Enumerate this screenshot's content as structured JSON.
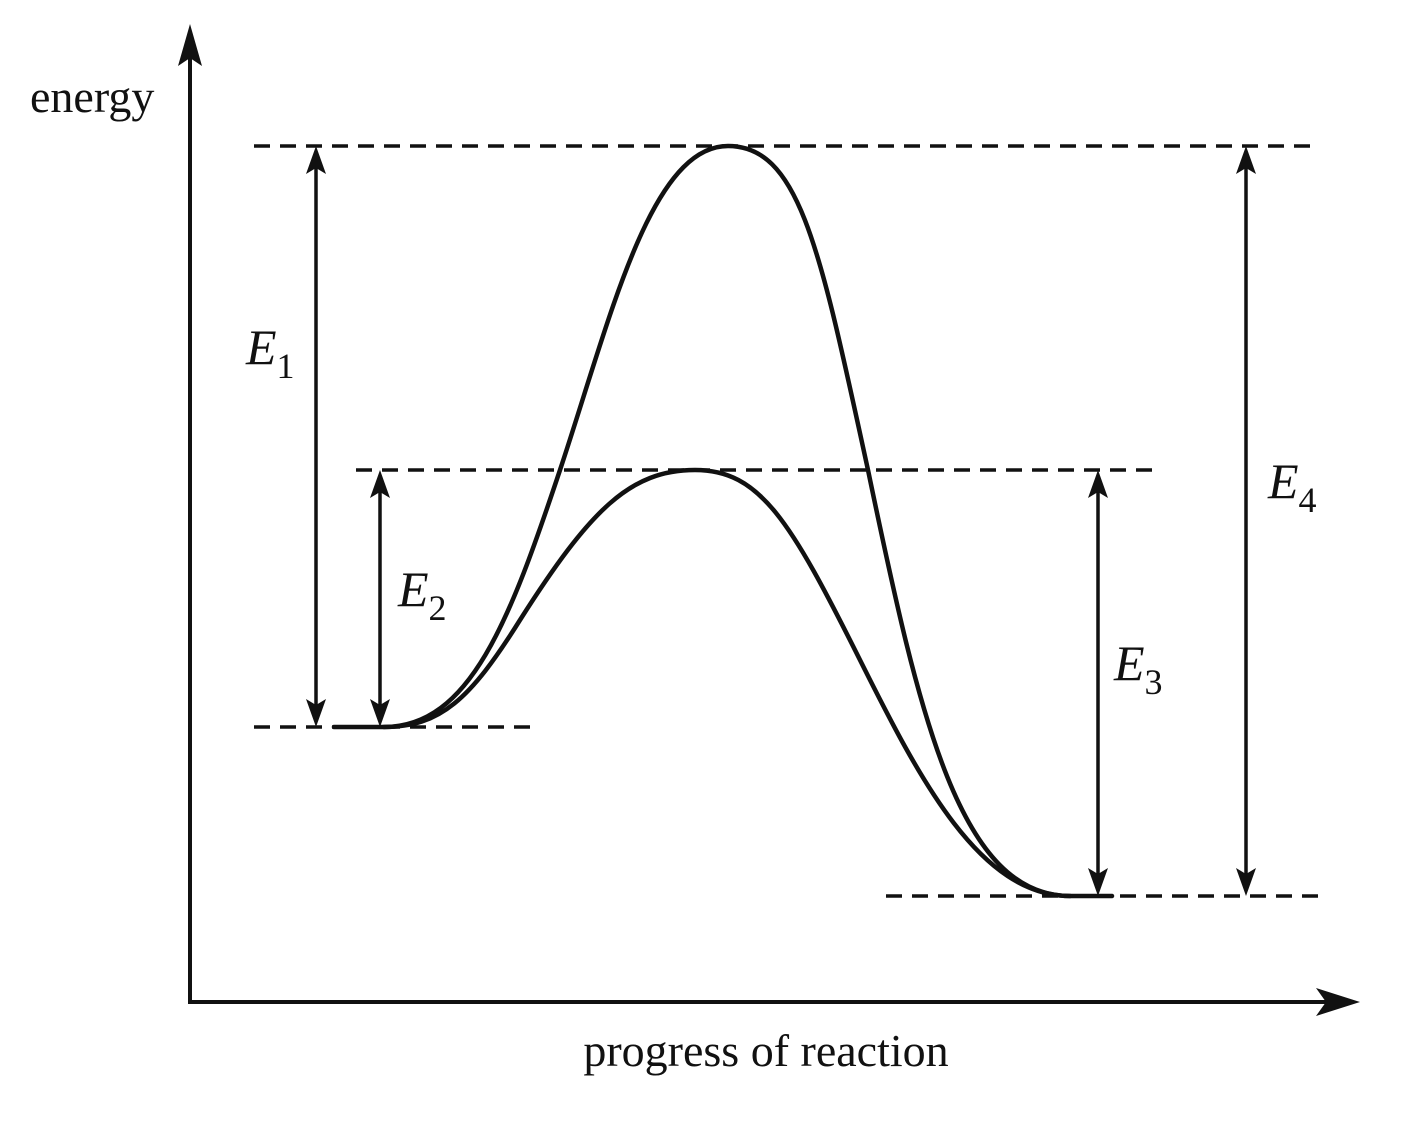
{
  "axes": {
    "y_label": "energy",
    "x_label": "progress of reaction"
  },
  "curves": [
    {
      "name": "uncatalysed-pathway"
    },
    {
      "name": "catalysed-pathway"
    }
  ],
  "levels": [
    {
      "name": "reactant-level"
    },
    {
      "name": "product-level"
    },
    {
      "name": "high-peak-level"
    },
    {
      "name": "low-peak-level"
    }
  ],
  "energy_arrows": [
    {
      "symbol": "E",
      "subscript": "1"
    },
    {
      "symbol": "E",
      "subscript": "2"
    },
    {
      "symbol": "E",
      "subscript": "3"
    },
    {
      "symbol": "E",
      "subscript": "4"
    }
  ],
  "colors": {
    "ink": "#111111",
    "background": "#ffffff"
  }
}
